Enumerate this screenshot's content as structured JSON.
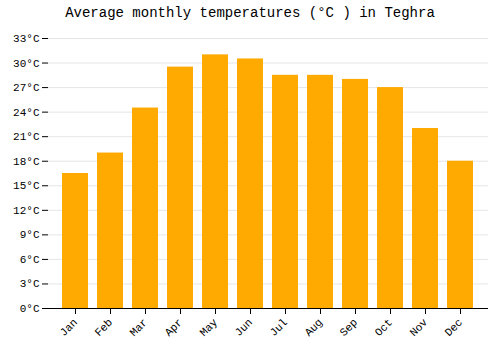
{
  "chart_data": {
    "type": "bar",
    "title": "Average monthly temperatures (°C ) in Teghra",
    "categories": [
      "Jan",
      "Feb",
      "Mar",
      "Apr",
      "May",
      "Jun",
      "Jul",
      "Aug",
      "Sep",
      "Oct",
      "Nov",
      "Dec"
    ],
    "values": [
      16.5,
      19.0,
      24.5,
      29.5,
      31.0,
      30.5,
      28.5,
      28.5,
      28.0,
      27.0,
      22.0,
      18.0
    ],
    "color": "#FFAA00",
    "ylim": [
      0,
      33
    ],
    "yticks": [
      {
        "value": 0,
        "label": "0°C"
      },
      {
        "value": 3,
        "label": "3°C"
      },
      {
        "value": 6,
        "label": "6°C"
      },
      {
        "value": 9,
        "label": "9°C"
      },
      {
        "value": 12,
        "label": "12°C"
      },
      {
        "value": 15,
        "label": "15°C"
      },
      {
        "value": 18,
        "label": "18°C"
      },
      {
        "value": 21,
        "label": "21°C"
      },
      {
        "value": 24,
        "label": "24°C"
      },
      {
        "value": 27,
        "label": "27°C"
      },
      {
        "value": 30,
        "label": "30°C"
      },
      {
        "value": 33,
        "label": "33°C"
      }
    ],
    "grid": true
  }
}
